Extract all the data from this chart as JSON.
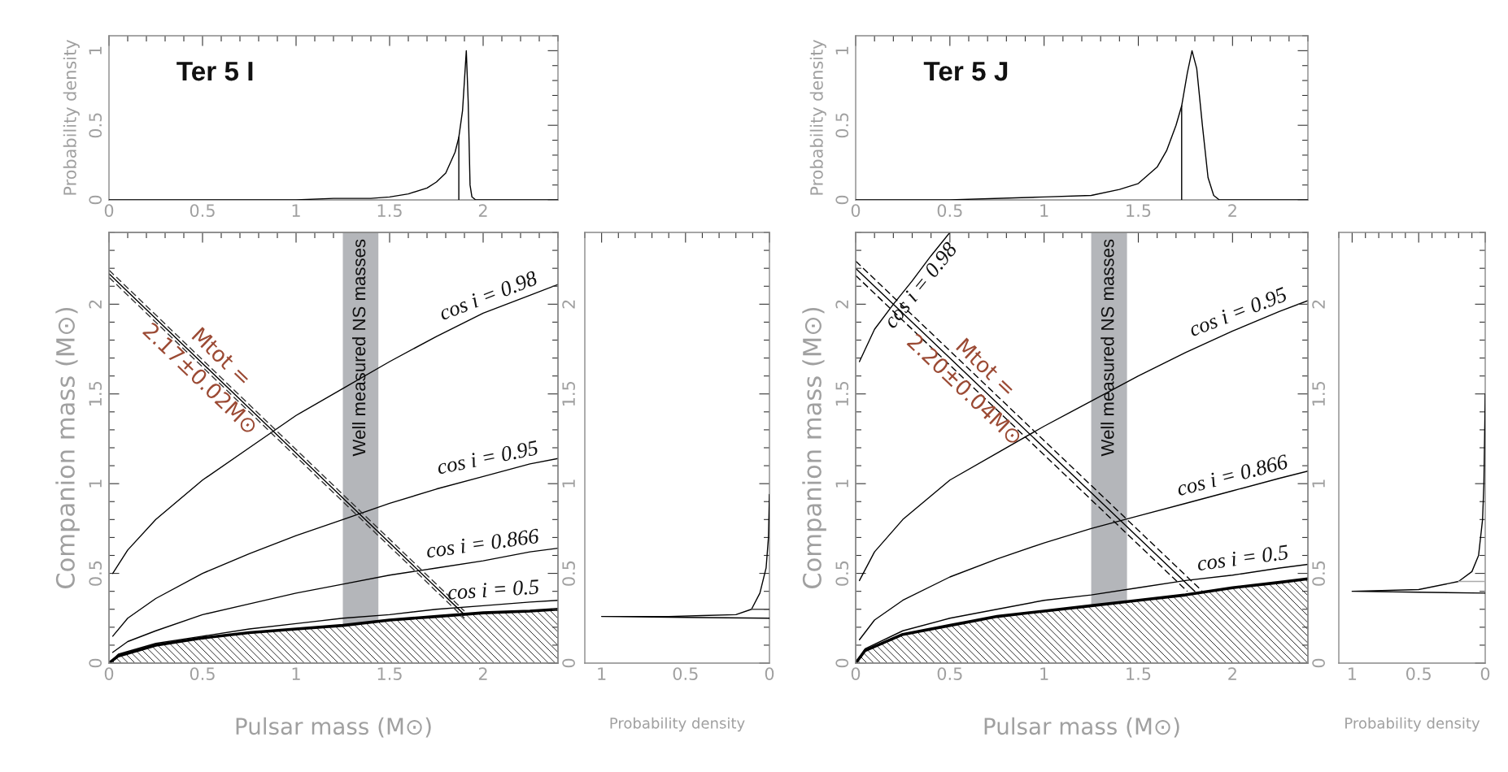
{
  "chart_data": [
    {
      "type": "line",
      "title": "Ter 5 I",
      "ylabel": "Probability density",
      "xlim": [
        0,
        2.4
      ],
      "ylim": [
        0,
        1.1
      ],
      "xticks": [
        0,
        0.5,
        1,
        1.5,
        2
      ],
      "yticks": [
        0,
        0.5,
        1
      ],
      "series": [
        {
          "color": "#000000",
          "x": [
            0,
            0.5,
            1.0,
            1.2,
            1.4,
            1.5,
            1.6,
            1.7,
            1.75,
            1.8,
            1.85,
            1.87,
            1.89,
            1.9,
            1.91,
            1.92,
            1.93,
            1.94,
            1.96,
            2.4
          ],
          "values": [
            0,
            0,
            0,
            0.01,
            0.01,
            0.02,
            0.04,
            0.08,
            0.12,
            0.18,
            0.32,
            0.42,
            0.6,
            0.8,
            1.0,
            0.66,
            0.1,
            0.02,
            0,
            0
          ]
        },
        {
          "color": "#000000",
          "x": [
            1.87,
            1.87
          ],
          "values": [
            0,
            0.42
          ]
        }
      ]
    },
    {
      "type": "line",
      "title": "Ter 5 J",
      "ylabel": "Probability density",
      "xlim": [
        0,
        2.4
      ],
      "ylim": [
        0,
        1.1
      ],
      "xticks": [
        0,
        0.5,
        1,
        1.5,
        2
      ],
      "yticks": [
        0,
        0.5,
        1
      ],
      "series": [
        {
          "color": "#000000",
          "x": [
            0,
            0.5,
            1.0,
            1.25,
            1.4,
            1.5,
            1.6,
            1.65,
            1.7,
            1.73,
            1.76,
            1.785,
            1.81,
            1.84,
            1.87,
            1.9,
            1.93,
            2.4
          ],
          "values": [
            0,
            0,
            0.02,
            0.03,
            0.07,
            0.11,
            0.22,
            0.33,
            0.5,
            0.63,
            0.85,
            1.0,
            0.88,
            0.5,
            0.15,
            0.03,
            0,
            0
          ]
        },
        {
          "color": "#000000",
          "x": [
            1.73,
            1.73
          ],
          "values": [
            0,
            0.63
          ]
        }
      ]
    },
    {
      "type": "line",
      "xlabel": "Pulsar mass (M⊙)",
      "ylabel": "Companion mass (M⊙)",
      "xlim": [
        0,
        2.4
      ],
      "ylim": [
        0,
        2.4
      ],
      "xticks": [
        0,
        0.5,
        1,
        1.5,
        2
      ],
      "yticks": [
        0,
        0.5,
        1,
        1.5,
        2
      ],
      "y2lim": [
        0,
        2.4
      ],
      "y2ticks": [
        0,
        0.5,
        1,
        1.5,
        2
      ],
      "bands": [
        {
          "axis": "x",
          "from": 1.25,
          "to": 1.44,
          "label": "Well measured NS masses",
          "color": "#b4b6ba"
        }
      ],
      "annotations": [
        {
          "text": "Mtot =\n2.17±0.02M⊙",
          "x": 0.54,
          "y": 1.64
        }
      ],
      "series": [
        {
          "name": "cos i = 0.98",
          "color": "#000000",
          "x": [
            0.02,
            0.1,
            0.25,
            0.5,
            0.75,
            1.0,
            1.25,
            1.5,
            1.75,
            2.0,
            2.25,
            2.4
          ],
          "values": [
            0.5,
            0.63,
            0.8,
            1.02,
            1.2,
            1.38,
            1.53,
            1.68,
            1.82,
            1.95,
            2.05,
            2.11
          ]
        },
        {
          "name": "cos i = 0.95",
          "color": "#000000",
          "x": [
            0.02,
            0.1,
            0.25,
            0.5,
            0.75,
            1.0,
            1.25,
            1.5,
            1.75,
            2.0,
            2.25,
            2.4
          ],
          "values": [
            0.15,
            0.25,
            0.36,
            0.5,
            0.61,
            0.71,
            0.8,
            0.89,
            0.97,
            1.04,
            1.11,
            1.14
          ]
        },
        {
          "name": "cos i = 0.866",
          "color": "#000000",
          "x": [
            0.02,
            0.1,
            0.25,
            0.5,
            0.75,
            1.0,
            1.25,
            1.5,
            1.75,
            2.0,
            2.25,
            2.4
          ],
          "values": [
            0.06,
            0.12,
            0.18,
            0.27,
            0.33,
            0.39,
            0.44,
            0.49,
            0.53,
            0.57,
            0.62,
            0.64
          ]
        },
        {
          "name": "cos i = 0.5",
          "color": "#000000",
          "x": [
            0,
            0.05,
            0.25,
            0.5,
            0.75,
            1.0,
            1.25,
            1.5,
            1.75,
            2.0,
            2.25,
            2.4
          ],
          "values": [
            0,
            0.05,
            0.11,
            0.15,
            0.19,
            0.22,
            0.25,
            0.27,
            0.3,
            0.32,
            0.34,
            0.35
          ]
        },
        {
          "type": "area",
          "color": "#000000",
          "x": [
            0,
            0.05,
            0.25,
            0.5,
            0.75,
            1.0,
            1.25,
            1.5,
            1.75,
            2.0,
            2.25,
            2.4
          ],
          "values": [
            0,
            0.04,
            0.1,
            0.14,
            0.17,
            0.19,
            0.21,
            0.24,
            0.26,
            0.28,
            0.29,
            0.3
          ]
        },
        {
          "color": "#000000",
          "x": [
            0,
            1.9
          ],
          "values": [
            2.17,
            0.27
          ]
        },
        {
          "color": "#333333",
          "line_style": "dashed",
          "x": [
            0,
            1.9
          ],
          "values": [
            2.19,
            0.29
          ]
        },
        {
          "color": "#333333",
          "line_style": "dashed",
          "x": [
            0,
            1.9
          ],
          "values": [
            2.15,
            0.25
          ]
        }
      ]
    },
    {
      "type": "line",
      "xlabel": "Probability density",
      "xlim": [
        1.1,
        0
      ],
      "ylim": [
        0,
        2.4
      ],
      "xticks": [
        1,
        0.5,
        0
      ],
      "yticks": [
        0,
        0.5,
        1,
        1.5,
        2
      ],
      "tick_labels": "x",
      "series": [
        {
          "color": "#000000",
          "x": [
            0,
            0.5,
            1.0,
            0.6,
            0.4,
            0.2,
            0.107,
            0.057,
            0.02,
            0.006,
            0
          ],
          "values": [
            0.25,
            0.255,
            0.26,
            0.26,
            0.265,
            0.27,
            0.3,
            0.39,
            0.53,
            0.7,
            0.94
          ]
        },
        {
          "color": "#444444",
          "x": [
            0.107,
            0
          ],
          "values": [
            0.3,
            0.3
          ]
        }
      ]
    },
    {
      "type": "line",
      "xlabel": "Pulsar mass (M⊙)",
      "ylabel": "Companion mass (M⊙)",
      "xlim": [
        0,
        2.4
      ],
      "ylim": [
        0,
        2.4
      ],
      "xticks": [
        0,
        0.5,
        1,
        1.5,
        2
      ],
      "yticks": [
        0,
        0.5,
        1,
        1.5,
        2
      ],
      "y2lim": [
        0,
        2.4
      ],
      "y2ticks": [
        0,
        0.5,
        1,
        1.5,
        2
      ],
      "bands": [
        {
          "axis": "x",
          "from": 1.25,
          "to": 1.44,
          "label": "Well measured NS masses",
          "color": "#b4b6ba"
        }
      ],
      "annotations": [
        {
          "text": "Mtot =\n2.20±0.04M⊙",
          "x": 0.63,
          "y": 1.58
        }
      ],
      "series": [
        {
          "name": "cos i = 0.98",
          "color": "#000000",
          "x": [
            0.02,
            0.1,
            0.2,
            0.3,
            0.4,
            0.5
          ],
          "values": [
            1.68,
            1.86,
            2.0,
            2.13,
            2.27,
            2.4
          ]
        },
        {
          "name": "cos i = 0.95",
          "color": "#000000",
          "x": [
            0.02,
            0.1,
            0.25,
            0.5,
            0.75,
            1.0,
            1.25,
            1.5,
            1.75,
            2.0,
            2.25,
            2.4
          ],
          "values": [
            0.46,
            0.62,
            0.8,
            1.02,
            1.17,
            1.32,
            1.46,
            1.6,
            1.73,
            1.85,
            1.96,
            2.02
          ]
        },
        {
          "name": "cos i = 0.866",
          "color": "#000000",
          "x": [
            0.02,
            0.1,
            0.25,
            0.5,
            0.75,
            1.0,
            1.25,
            1.5,
            1.75,
            2.0,
            2.25,
            2.4
          ],
          "values": [
            0.13,
            0.24,
            0.35,
            0.48,
            0.58,
            0.67,
            0.75,
            0.82,
            0.89,
            0.96,
            1.03,
            1.07
          ]
        },
        {
          "name": "cos i = 0.5",
          "color": "#000000",
          "x": [
            0,
            0.05,
            0.25,
            0.5,
            0.75,
            1.0,
            1.25,
            1.5,
            1.75,
            2.0,
            2.25,
            2.4
          ],
          "values": [
            0,
            0.08,
            0.18,
            0.25,
            0.3,
            0.35,
            0.38,
            0.42,
            0.46,
            0.49,
            0.53,
            0.55
          ]
        },
        {
          "type": "area",
          "color": "#000000",
          "x": [
            0,
            0.05,
            0.25,
            0.5,
            0.75,
            1.0,
            1.25,
            1.5,
            1.75,
            2.0,
            2.25,
            2.4
          ],
          "values": [
            0,
            0.07,
            0.16,
            0.21,
            0.26,
            0.29,
            0.32,
            0.35,
            0.38,
            0.42,
            0.45,
            0.47
          ]
        },
        {
          "color": "#000000",
          "x": [
            0,
            1.8
          ],
          "values": [
            2.2,
            0.4
          ]
        },
        {
          "color": "#000000",
          "line_style": "dashed",
          "x": [
            0,
            1.84
          ],
          "values": [
            2.24,
            0.4
          ]
        },
        {
          "color": "#000000",
          "line_style": "dashed",
          "x": [
            0,
            1.76
          ],
          "values": [
            2.16,
            0.4
          ]
        }
      ]
    },
    {
      "type": "line",
      "xlabel": "Probability density",
      "xlim": [
        1.1,
        0
      ],
      "ylim": [
        0,
        2.4
      ],
      "xticks": [
        1,
        0.5,
        0
      ],
      "yticks": [
        0,
        0.5,
        1,
        1.5,
        2
      ],
      "tick_labels": "x",
      "series": [
        {
          "color": "#000000",
          "x": [
            0,
            0.5,
            1.0,
            0.5,
            0.2,
            0.1,
            0.05,
            0.02,
            0.01,
            0.003,
            0
          ],
          "values": [
            0.39,
            0.395,
            0.4,
            0.41,
            0.455,
            0.51,
            0.6,
            0.8,
            1.0,
            1.34,
            1.5
          ]
        },
        {
          "color": "#aaaaaa",
          "x": [
            0.2,
            0
          ],
          "values": [
            0.455,
            0.455
          ]
        }
      ]
    }
  ]
}
